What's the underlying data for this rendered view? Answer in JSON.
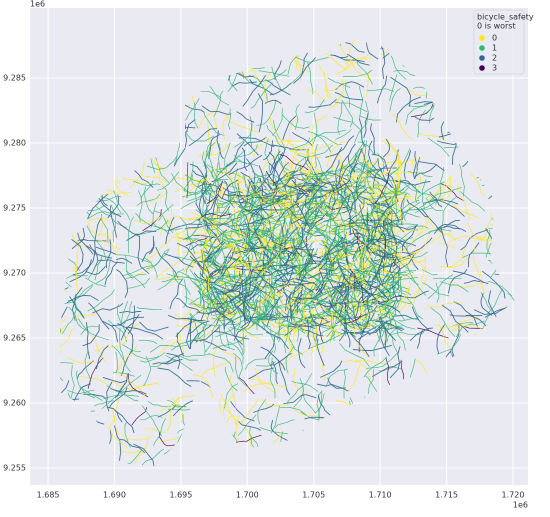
{
  "chart_data": {
    "type": "map",
    "x_offset_label": "1e6",
    "y_offset_label": "1e6",
    "xlim": [
      1.68364,
      1.72113
    ],
    "xticks": [
      1.685,
      {
        "value": 1.69,
        "label": "1.690"
      },
      1.695,
      {
        "value": 1.7,
        "label": "1.700"
      },
      1.705,
      {
        "value": 1.71,
        "label": "1.710"
      },
      1.715,
      {
        "value": 1.72,
        "label": "1.720"
      }
    ],
    "ylim": [
      9.25369,
      9.29038
    ],
    "yticks": [
      9.255,
      {
        "value": 9.26,
        "label": "9.260"
      },
      9.265,
      {
        "value": 9.27,
        "label": "9.270"
      },
      9.275,
      {
        "value": 9.28,
        "label": "9.280"
      },
      9.285
    ],
    "grid": true,
    "legend": {
      "title": [
        "bicycle_safety",
        "0 is worst"
      ],
      "position": "upper right"
    },
    "series": [
      {
        "name": "0",
        "color": "#fde725"
      },
      {
        "name": "1",
        "color": "#35b779"
      },
      {
        "name": "2",
        "color": "#31688e"
      },
      {
        "name": "3",
        "color": "#440154"
      }
    ]
  }
}
